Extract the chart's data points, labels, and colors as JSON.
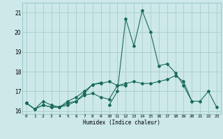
{
  "xlabel": "Humidex (Indice chaleur)",
  "bg_color": "#cce8e8",
  "grid_color": "#aacccc",
  "line_color": "#1a6b5a",
  "x_values": [
    0,
    1,
    2,
    3,
    4,
    5,
    6,
    7,
    8,
    9,
    10,
    11,
    12,
    13,
    14,
    15,
    16,
    17,
    18,
    19,
    20,
    21,
    22,
    23
  ],
  "line1": [
    16.4,
    16.1,
    16.5,
    16.3,
    16.2,
    16.3,
    16.5,
    16.9,
    17.35,
    17.4,
    17.5,
    17.3,
    17.3,
    null,
    null,
    null,
    null,
    null,
    null,
    null,
    null,
    null,
    null,
    null
  ],
  "line2": [
    16.4,
    16.1,
    16.3,
    16.2,
    16.2,
    16.4,
    16.5,
    16.8,
    16.9,
    16.7,
    16.6,
    17.3,
    17.4,
    17.5,
    17.4,
    17.4,
    17.5,
    17.6,
    17.8,
    17.5,
    16.5,
    16.5,
    17.0,
    16.2
  ],
  "line3": [
    null,
    null,
    null,
    null,
    null,
    null,
    null,
    null,
    null,
    null,
    16.3,
    17.0,
    20.7,
    19.3,
    21.1,
    20.0,
    18.3,
    18.4,
    17.95,
    17.3,
    16.5,
    null,
    null,
    null
  ],
  "line4": [
    16.4,
    16.1,
    16.3,
    16.2,
    16.2,
    16.5,
    16.7,
    17.0,
    17.35,
    17.45,
    null,
    null,
    null,
    null,
    null,
    null,
    null,
    null,
    null,
    null,
    null,
    null,
    null,
    null
  ],
  "xlim": [
    -0.5,
    23.5
  ],
  "ylim": [
    15.85,
    21.5
  ],
  "yticks": [
    16,
    17,
    18,
    19,
    20,
    21
  ],
  "xticks": [
    0,
    1,
    2,
    3,
    4,
    5,
    6,
    7,
    8,
    9,
    10,
    11,
    12,
    13,
    14,
    15,
    16,
    17,
    18,
    19,
    20,
    21,
    22,
    23
  ]
}
